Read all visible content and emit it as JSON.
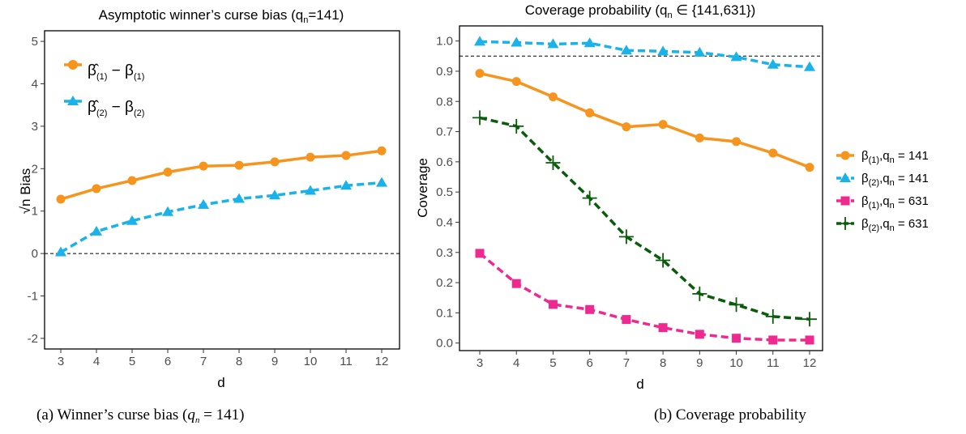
{
  "figure": {
    "captions": [
      "(a) Winner’s curse bias (qn = 141)",
      "(b) Coverage probability"
    ]
  },
  "chart_data": [
    {
      "type": "line",
      "title": "Asymptotic winner’s curse bias (qn=141)",
      "xlabel": "d",
      "ylabel": "√n Bias",
      "x": [
        3,
        4,
        5,
        6,
        7,
        8,
        9,
        10,
        11,
        12
      ],
      "xlim": [
        3,
        12
      ],
      "ylim": [
        -2.25,
        5.25
      ],
      "yticks": [
        -2,
        -1,
        0,
        1,
        2,
        3,
        4,
        5
      ],
      "reference_line": {
        "y": 0,
        "style": "dashed"
      },
      "legend_position": "top-left",
      "series": [
        {
          "name": "β̂(1) − β(1)",
          "color": "#f7941d",
          "marker": "circle",
          "line": "solid",
          "values": [
            1.28,
            1.53,
            1.72,
            1.92,
            2.06,
            2.08,
            2.16,
            2.27,
            2.31,
            2.42
          ]
        },
        {
          "name": "β̂(2) − β(2)",
          "color": "#1ab2e8",
          "marker": "triangle",
          "line": "dashed",
          "values": [
            0.03,
            0.52,
            0.77,
            0.98,
            1.15,
            1.29,
            1.37,
            1.48,
            1.6,
            1.67
          ]
        }
      ]
    },
    {
      "type": "line",
      "title": "Coverage probability (qn ∈ {141,631})",
      "xlabel": "d",
      "ylabel": "Coverage",
      "x": [
        3,
        4,
        5,
        6,
        7,
        8,
        9,
        10,
        11,
        12
      ],
      "xlim": [
        3,
        12
      ],
      "ylim": [
        -0.025,
        1.05
      ],
      "yticks": [
        0.0,
        0.1,
        0.2,
        0.3,
        0.4,
        0.5,
        0.6,
        0.7,
        0.8,
        0.9,
        1.0
      ],
      "reference_line": {
        "y": 0.95,
        "style": "dashed"
      },
      "legend_position": "right",
      "series": [
        {
          "name": "β(1),qn = 141",
          "color": "#f7941d",
          "marker": "circle",
          "line": "solid",
          "values": [
            0.893,
            0.866,
            0.815,
            0.762,
            0.716,
            0.724,
            0.679,
            0.667,
            0.629,
            0.582
          ]
        },
        {
          "name": "β(2),qn = 141",
          "color": "#1ab2e8",
          "marker": "triangle",
          "line": "dashed",
          "values": [
            0.998,
            0.995,
            0.99,
            0.993,
            0.969,
            0.966,
            0.962,
            0.947,
            0.922,
            0.914
          ]
        },
        {
          "name": "β(1),qn = 631",
          "color": "#ee2a90",
          "marker": "square",
          "line": "dashed",
          "values": [
            0.297,
            0.197,
            0.128,
            0.111,
            0.078,
            0.051,
            0.029,
            0.016,
            0.01,
            0.01
          ]
        },
        {
          "name": "β(2),qn = 631",
          "color": "#0a5c0a",
          "marker": "cross",
          "line": "dashed",
          "values": [
            0.746,
            0.718,
            0.597,
            0.48,
            0.352,
            0.274,
            0.163,
            0.127,
            0.088,
            0.079
          ]
        }
      ]
    }
  ]
}
